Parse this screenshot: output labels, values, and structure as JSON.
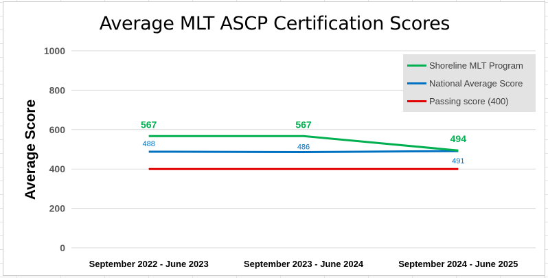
{
  "chart_data": {
    "type": "line",
    "title": "Average MLT ASCP Certification Scores",
    "ylabel": "Average Score",
    "xlabel": "",
    "ylim": [
      0,
      1000
    ],
    "yticks": [
      0,
      200,
      400,
      600,
      800,
      1000
    ],
    "categories": [
      "September 2022 - June 2023",
      "September 2023 - June 2024",
      "September 2024 - June 2025"
    ],
    "legend_position": "top-right",
    "grid": true,
    "series": [
      {
        "name": "Shoreline MLT Program",
        "values": [
          567,
          567,
          494
        ],
        "labels": [
          "567",
          "567",
          "494"
        ],
        "color": "#00b050",
        "label_position": "above"
      },
      {
        "name": "National Average Score",
        "values": [
          488,
          486,
          491
        ],
        "labels": [
          "488",
          "486",
          "491"
        ],
        "color": "#0070c0",
        "label_position": "mixed"
      },
      {
        "name": "Passing score (400)",
        "values": [
          400,
          400,
          400
        ],
        "labels": [],
        "color": "#e00000"
      }
    ]
  }
}
